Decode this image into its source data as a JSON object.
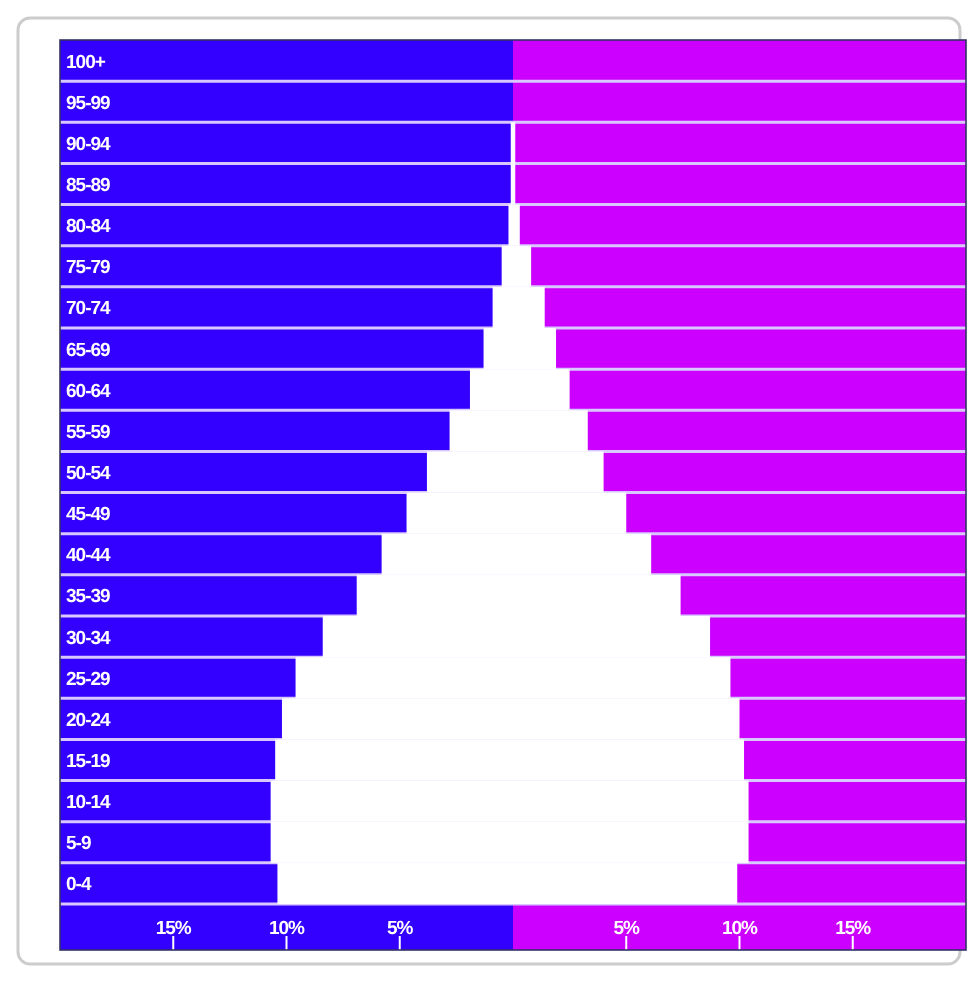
{
  "chart_data": {
    "type": "bar",
    "stacked": true,
    "orientation": "horizontal",
    "categories": [
      "100+",
      "95-99",
      "90-94",
      "85-89",
      "80-84",
      "75-79",
      "70-74",
      "65-69",
      "60-64",
      "55-59",
      "50-54",
      "45-49",
      "40-44",
      "35-39",
      "30-34",
      "25-29",
      "20-24",
      "15-19",
      "10-14",
      "5-9",
      "0-4"
    ],
    "series": [
      {
        "color": "#ffffff",
        "values": [
          0,
          0,
          -0.1,
          -0.1,
          -0.2,
          -0.5,
          -0.9,
          -1.3,
          -1.9,
          -2.8,
          -3.8,
          -4.7,
          -5.8,
          -6.9,
          -8.4,
          -9.6,
          -10.2,
          -10.5,
          -10.7,
          -10.7,
          -10.4
        ]
      },
      {
        "color": "#ffffff",
        "values": [
          0,
          0,
          0.1,
          0.1,
          0.3,
          0.8,
          1.4,
          1.9,
          2.5,
          3.3,
          4.0,
          5.0,
          6.1,
          7.4,
          8.7,
          9.6,
          10.0,
          10.2,
          10.4,
          10.4,
          9.9
        ]
      }
    ],
    "xlim": [
      -20,
      20
    ],
    "xticks": [
      {
        "value": -15,
        "label": "15%"
      },
      {
        "value": -10,
        "label": "10%"
      },
      {
        "value": -5,
        "label": "5%"
      },
      {
        "value": 5,
        "label": "5%"
      },
      {
        "value": 10,
        "label": "10%"
      },
      {
        "value": 15,
        "label": "15%"
      }
    ],
    "bands": [
      {
        "axis": "x",
        "from": -20,
        "to": 0,
        "color": "#3300ff"
      },
      {
        "axis": "x",
        "from": 0,
        "to": 20,
        "color": "#cc00ff"
      }
    ],
    "grid": "y"
  }
}
